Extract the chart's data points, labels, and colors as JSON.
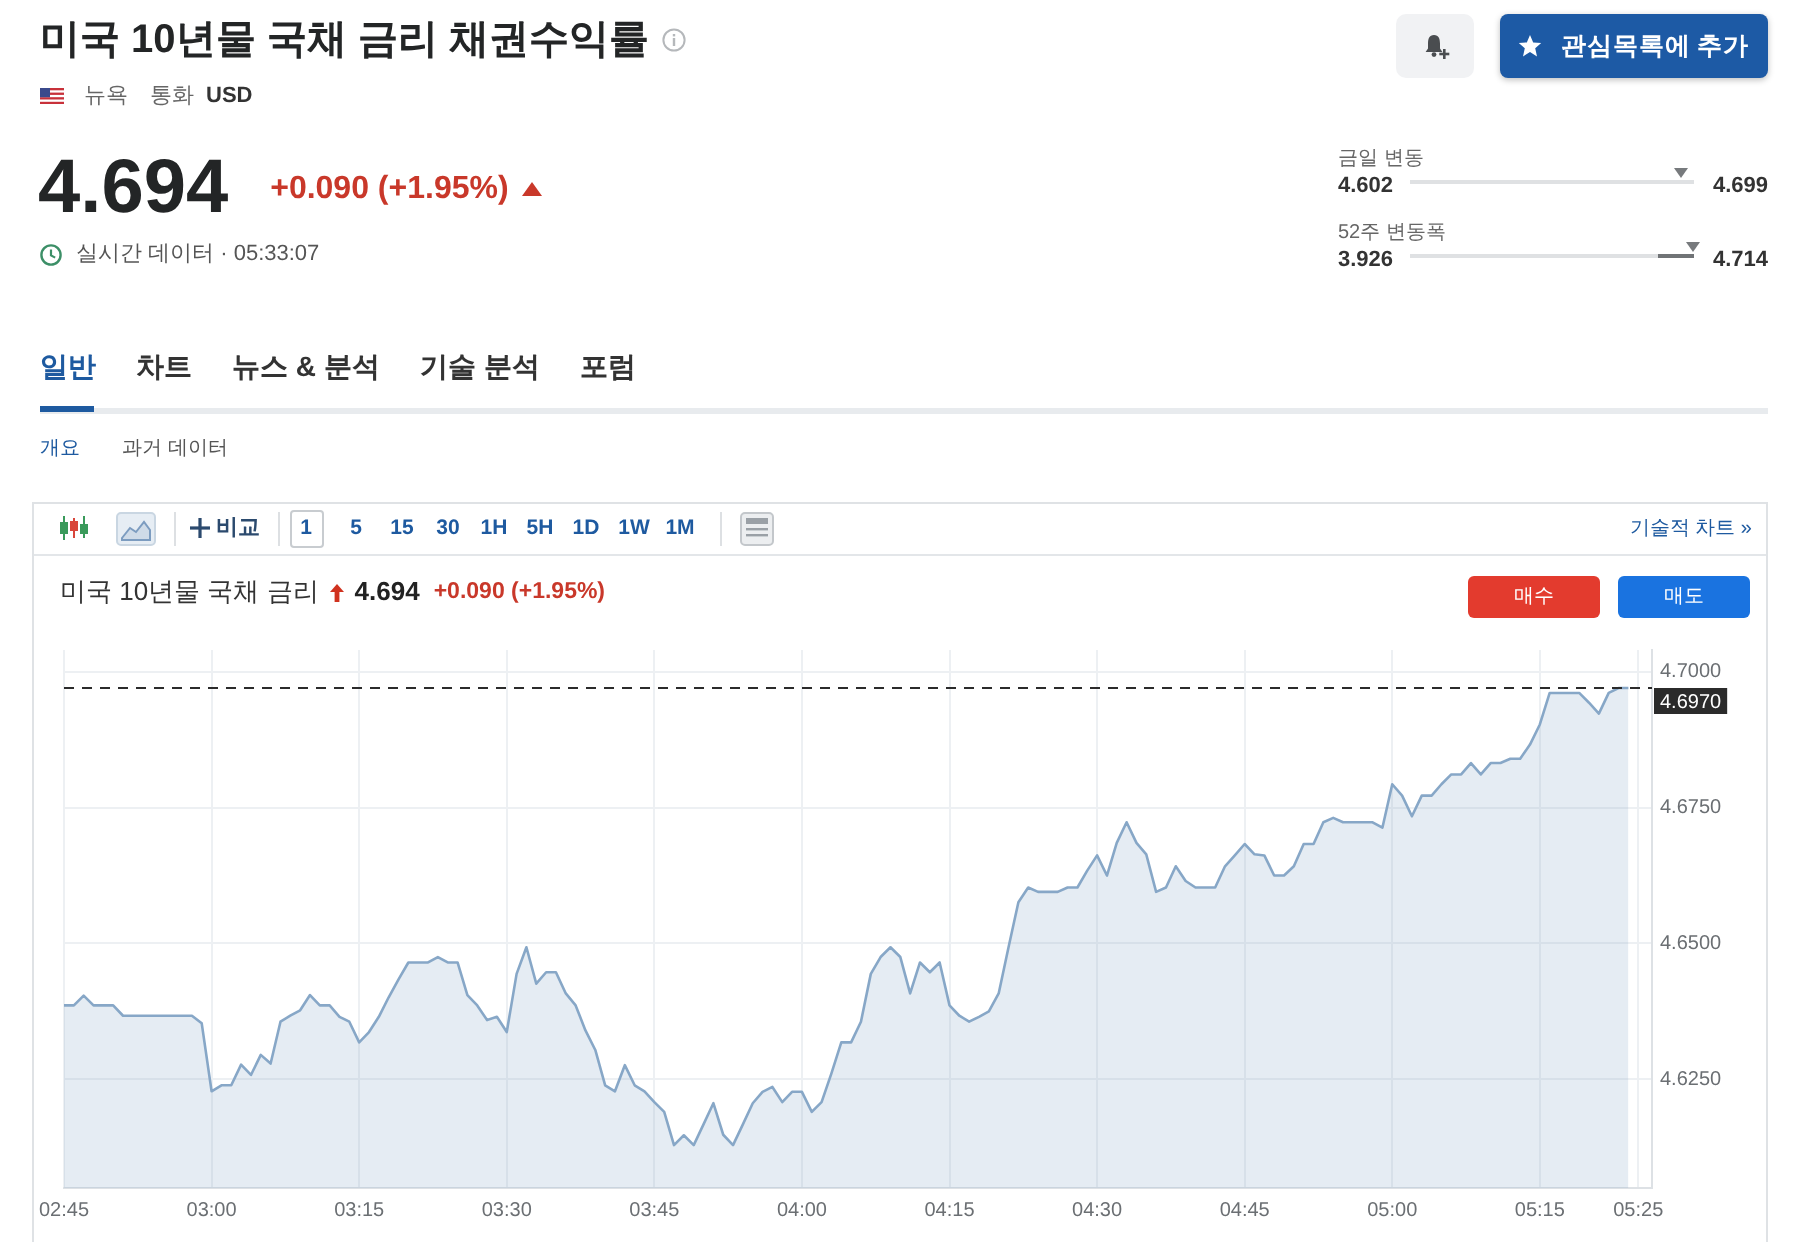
{
  "chart_data": [
    {
      "type": "other",
      "title": "미국 10년물 국채 금리 채권수익률",
      "annotations": [
        "뉴욕",
        "통화",
        "USD",
        "4.694",
        "+0.090 (+1.95%)",
        "실시간 데이터 · 05:33:07",
        "관심목록에 추가",
        "금일 변동",
        "4.602",
        "4.699",
        "52주 변동폭",
        "3.926",
        "4.714",
        "일반",
        "차트",
        "뉴스 & 분석",
        "기술 분석",
        "포럼",
        "개요",
        "과거 데이터"
      ]
    },
    {
      "type": "area",
      "title": "미국 10년물 국채 금리",
      "annotations": [
        "비교",
        "1",
        "5",
        "15",
        "30",
        "1H",
        "5H",
        "1D",
        "1W",
        "1M",
        "기술적 차트 »",
        "4.694",
        "+0.090 (+1.95%)",
        "매수",
        "매도"
      ],
      "x": [
        2.75,
        2.7667,
        2.7833,
        2.8,
        2.8333,
        2.85,
        2.9667,
        2.9833,
        3,
        3.0167,
        3.0333,
        3.05,
        3.0667,
        3.0833,
        3.1,
        3.1167,
        3.1333,
        3.15,
        3.1667,
        3.1833,
        3.2,
        3.2167,
        3.2333,
        3.25,
        3.2667,
        3.2833,
        3.3,
        3.3167,
        3.3333,
        3.3667,
        3.3833,
        3.4,
        3.4167,
        3.4333,
        3.45,
        3.4667,
        3.4833,
        3.5,
        3.5167,
        3.5333,
        3.55,
        3.5667,
        3.5833,
        3.6,
        3.6167,
        3.6333,
        3.65,
        3.6667,
        3.6833,
        3.7,
        3.7167,
        3.7333,
        3.75,
        3.7667,
        3.7833,
        3.8,
        3.8167,
        3.8333,
        3.85,
        3.8667,
        3.8833,
        3.9,
        3.9167,
        3.9333,
        3.95,
        3.9667,
        3.9833,
        4,
        4.0167,
        4.0333,
        4.05,
        4.0667,
        4.0833,
        4.1,
        4.1167,
        4.1333,
        4.15,
        4.1667,
        4.1833,
        4.2,
        4.2167,
        4.2333,
        4.25,
        4.2667,
        4.2833,
        4.3,
        4.3167,
        4.3333,
        4.35,
        4.3667,
        4.3833,
        4.4,
        4.4333,
        4.45,
        4.4667,
        4.4833,
        4.5,
        4.5167,
        4.5333,
        4.55,
        4.5667,
        4.5833,
        4.6,
        4.6167,
        4.6333,
        4.65,
        4.6667,
        4.7,
        4.7167,
        4.7333,
        4.75,
        4.7667,
        4.7833,
        4.8,
        4.8167,
        4.8333,
        4.85,
        4.8667,
        4.8833,
        4.9,
        4.9167,
        4.9667,
        4.9833,
        5,
        5.0167,
        5.0333,
        5.05,
        5.0667,
        5.0833,
        5.1,
        5.1167,
        5.1333,
        5.15,
        5.1667,
        5.1833,
        5.2,
        5.2167,
        5.2333,
        5.25,
        5.2667,
        5.3167,
        5.3333,
        5.35,
        5.3667,
        5.3833,
        5.4
      ],
      "values": [
        4.6386,
        4.6386,
        4.6404,
        4.6386,
        4.6386,
        4.6367,
        4.6367,
        4.6353,
        4.6228,
        4.6239,
        4.6239,
        4.6277,
        4.6258,
        4.6295,
        4.6279,
        4.6356,
        4.6367,
        4.6377,
        4.6405,
        4.6386,
        4.6386,
        4.6365,
        4.6356,
        4.6318,
        4.6337,
        4.6365,
        4.6401,
        4.6434,
        4.6465,
        4.6465,
        4.6475,
        4.6465,
        4.6465,
        4.6405,
        4.6386,
        4.6359,
        4.6365,
        4.6337,
        4.6444,
        4.6493,
        4.6426,
        4.6447,
        4.6447,
        4.6408,
        4.6386,
        4.634,
        4.6304,
        4.6239,
        4.6228,
        4.6276,
        4.6239,
        4.6228,
        4.6208,
        4.619,
        4.6129,
        4.6147,
        4.6129,
        4.6167,
        4.6206,
        4.6148,
        4.6129,
        4.6167,
        4.6206,
        4.6227,
        4.6236,
        4.6208,
        4.6227,
        4.6227,
        4.619,
        4.6208,
        4.6261,
        4.6318,
        4.6318,
        4.6356,
        4.6444,
        4.6475,
        4.6493,
        4.6475,
        4.6408,
        4.6465,
        4.6447,
        4.6465,
        4.6386,
        4.6367,
        4.6356,
        4.6365,
        4.6375,
        4.6408,
        4.6493,
        4.6576,
        4.6603,
        4.6595,
        4.6595,
        4.6603,
        4.6603,
        4.6634,
        4.6662,
        4.6625,
        4.6685,
        4.6723,
        4.6685,
        4.6664,
        4.6595,
        4.6603,
        4.6642,
        4.6615,
        4.6603,
        4.6603,
        4.6642,
        4.6662,
        4.6683,
        4.6664,
        4.6662,
        4.6625,
        4.6625,
        4.6642,
        4.6683,
        4.6683,
        4.6723,
        4.6731,
        4.6723,
        4.6723,
        4.6713,
        4.6793,
        4.6772,
        4.6734,
        4.6772,
        4.6772,
        4.6793,
        4.6811,
        4.6811,
        4.6832,
        4.6811,
        4.6832,
        4.6832,
        4.684,
        4.684,
        4.6866,
        4.6903,
        4.6961,
        4.6961,
        4.6943,
        4.6923,
        4.6961,
        4.697,
        4.697
      ],
      "color": "#87a7c7",
      "xlim": [
        2.75,
        5.44
      ],
      "xticks": [
        {
          "value": 2.75,
          "label": "02:45"
        },
        {
          "value": 3,
          "label": "03:00"
        },
        {
          "value": 3.25,
          "label": "03:15"
        },
        {
          "value": 3.5,
          "label": "03:30"
        },
        {
          "value": 3.75,
          "label": "03:45"
        },
        {
          "value": 4,
          "label": "04:00"
        },
        {
          "value": 4.25,
          "label": "04:15"
        },
        {
          "value": 4.5,
          "label": "04:30"
        },
        {
          "value": 4.75,
          "label": "04:45"
        },
        {
          "value": 5,
          "label": "05:00"
        },
        {
          "value": 5.25,
          "label": "05:15"
        },
        {
          "value": 5.4167,
          "label": "05:25"
        }
      ],
      "ylim": [
        4.605,
        4.704
      ],
      "yticks": [
        {
          "value": 4.625,
          "label": "4.6250"
        },
        {
          "value": 4.65,
          "label": "4.6500"
        },
        {
          "value": 4.675,
          "label": "4.6750"
        },
        {
          "value": 4.7,
          "label": "4.7000"
        }
      ],
      "grid": true,
      "ref_lines": [
        {
          "axis": "y",
          "value": 4.697,
          "label": "4.6970",
          "color": "#2b2b2b",
          "line_style": "dashed"
        }
      ]
    }
  ]
}
